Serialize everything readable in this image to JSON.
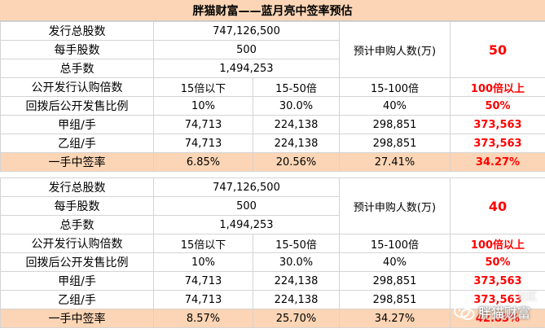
{
  "title": "胖猫财富——蓝月亮中签率预估",
  "sections": [
    {
      "shares_label": "发行总股数",
      "shares_value": "747,126,500",
      "lot_label": "每手股数",
      "lot_value": "500",
      "total_lots_label": "总手数",
      "total_lots_value": "1,494,253",
      "applicants_label": "预计申购人数(万)",
      "applicants_value": "50",
      "subscription": {
        "label": "公开发行认购倍数",
        "values": [
          "15倍以下",
          "15-50倍",
          "15-100倍",
          "100倍以上"
        ]
      },
      "clawback": {
        "label": "回拨后公开发售比例",
        "values": [
          "10%",
          "30.0%",
          "40%",
          "50%"
        ]
      },
      "group_a": {
        "label": "甲组/手",
        "values": [
          "74,713",
          "224,138",
          "298,851",
          "373,563"
        ]
      },
      "group_b": {
        "label": "乙组/手",
        "values": [
          "74,713",
          "224,138",
          "298,851",
          "373,563"
        ]
      },
      "rate": {
        "label": "一手中签率",
        "values": [
          "6.85%",
          "20.56%",
          "27.41%",
          "34.27%"
        ]
      }
    },
    {
      "shares_label": "发行总股数",
      "shares_value": "747,126,500",
      "lot_label": "每手股数",
      "lot_value": "500",
      "total_lots_label": "总手数",
      "total_lots_value": "1,494,253",
      "applicants_label": "预计申购人数(万)",
      "applicants_value": "40",
      "subscription": {
        "label": "公开发行认购倍数",
        "values": [
          "15倍以下",
          "15-50倍",
          "15-100倍",
          "100倍以上"
        ]
      },
      "clawback": {
        "label": "回拨后公开发售比例",
        "values": [
          "10%",
          "30.0%",
          "40%",
          "50%"
        ]
      },
      "group_a": {
        "label": "甲组/手",
        "values": [
          "74,713",
          "224,138",
          "298,851",
          "373,563"
        ]
      },
      "group_b": {
        "label": "乙组/手",
        "values": [
          "74,713",
          "224,138",
          "298,851",
          "373,563"
        ]
      },
      "rate": {
        "label": "一手中签率",
        "values": [
          "8.57%",
          "25.70%",
          "34.27%",
          "42.83%"
        ]
      }
    }
  ],
  "watermark": {
    "text": "胖猫财富",
    "sub": "社区",
    "icon": "wechat-icon"
  }
}
